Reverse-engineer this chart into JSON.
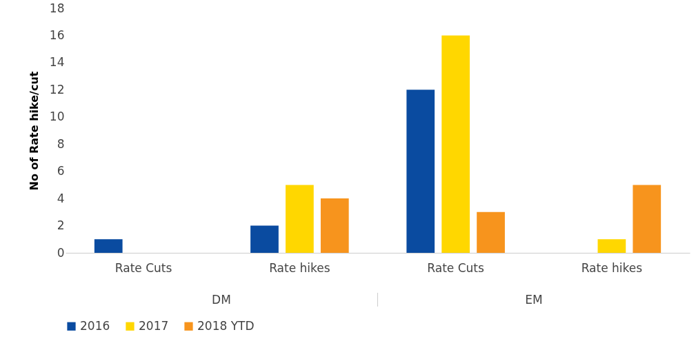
{
  "chart_data": {
    "type": "bar",
    "ylabel": "No of Rate hike/cut",
    "categories": [
      "Rate Cuts",
      "Rate hikes",
      "Rate Cuts",
      "Rate hikes"
    ],
    "annotations": [
      "DM",
      "EM"
    ],
    "series": [
      {
        "name": "2016",
        "color": "#0a4ba0",
        "values": [
          1,
          2,
          12,
          0
        ]
      },
      {
        "name": "2017",
        "color": "#ffd700",
        "values": [
          0,
          5,
          16,
          1
        ]
      },
      {
        "name": "2018 YTD",
        "color": "#f7941d",
        "values": [
          0,
          4,
          3,
          5
        ]
      }
    ],
    "ylim": [
      0,
      18
    ],
    "yticks": [
      0,
      2,
      4,
      6,
      8,
      10,
      12,
      14,
      16,
      18
    ],
    "grid": false,
    "legend": "bottom"
  }
}
